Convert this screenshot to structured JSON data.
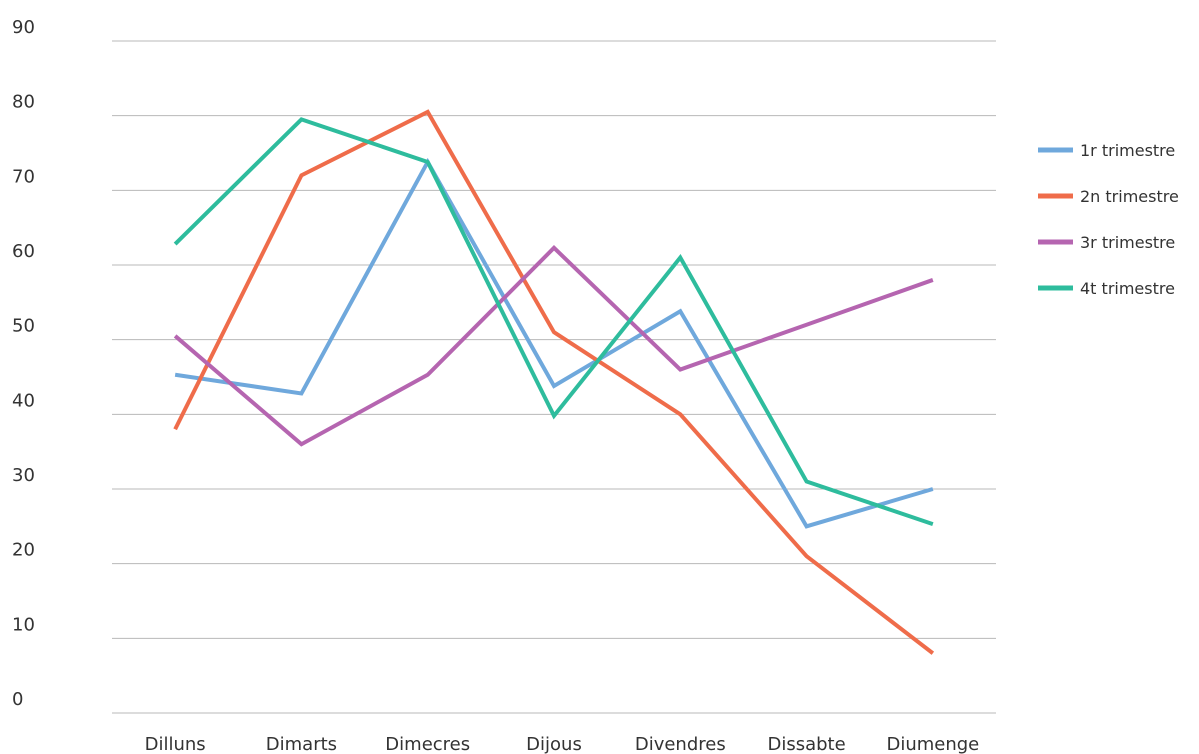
{
  "chart_data": {
    "type": "line",
    "title": "",
    "xlabel": "",
    "ylabel": "",
    "categories": [
      "Dilluns",
      "Dimarts",
      "Dimecres",
      "Dijous",
      "Divendres",
      "Dissabte",
      "Diumenge"
    ],
    "ylim": [
      0,
      90
    ],
    "yticks": [
      "0",
      "10",
      "20",
      "30",
      "40",
      "50",
      "60",
      "70",
      "80",
      "90"
    ],
    "grid": true,
    "legend_position": "right",
    "series": [
      {
        "name": "1r trimestre",
        "color": "#6fa8dc",
        "values": [
          45.3,
          42.8,
          73.8,
          43.8,
          53.8,
          25.0,
          30.0
        ]
      },
      {
        "name": "2n trimestre",
        "color": "#ef6c4a",
        "values": [
          38.0,
          72.0,
          80.5,
          51.0,
          40.0,
          21.0,
          8.0
        ]
      },
      {
        "name": "3r trimestre",
        "color": "#b565b0",
        "values": [
          50.5,
          36.0,
          45.3,
          62.3,
          46.0,
          52.0,
          58.0
        ]
      },
      {
        "name": "4t trimestre",
        "color": "#2ebc9d",
        "values": [
          62.8,
          79.5,
          73.8,
          39.8,
          61.0,
          31.0,
          25.3
        ]
      }
    ]
  }
}
